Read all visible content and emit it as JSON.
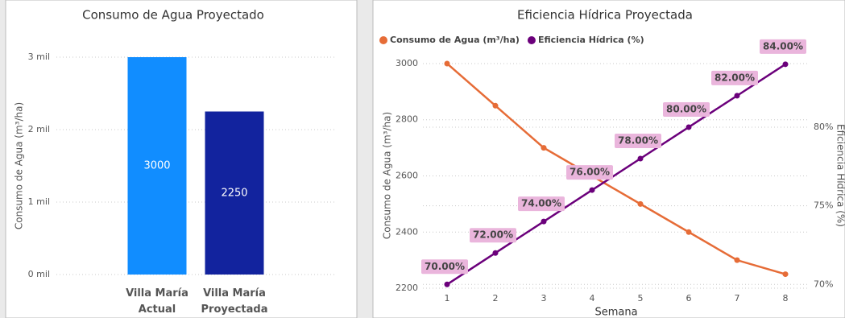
{
  "chart_data": [
    {
      "type": "bar",
      "title": "Consumo de Agua Proyectado",
      "ylabel": "Consumo de Agua (m³/ha)",
      "categories": [
        "Villa María Actual",
        "Villa María Proyectada"
      ],
      "values": [
        3000,
        2250
      ],
      "colors": [
        "#118dff",
        "#12239e"
      ],
      "ylim": [
        0,
        3000
      ],
      "yticks": [
        {
          "value": 0,
          "label": "0 mil"
        },
        {
          "value": 1000,
          "label": "1 mil"
        },
        {
          "value": 2000,
          "label": "2 mil"
        },
        {
          "value": 3000,
          "label": "3 mil"
        }
      ],
      "grid": true
    },
    {
      "type": "line",
      "title": "Eficiencia Hídrica Proyectada",
      "xlabel": "Semana",
      "ylabel": "Consumo de Agua (m³/ha)",
      "y2label": "Eficiencia Hídrica (%)",
      "x": [
        1,
        2,
        3,
        4,
        5,
        6,
        7,
        8
      ],
      "xlim": [
        0.5,
        8.5
      ],
      "xticks": [
        1,
        2,
        3,
        4,
        5,
        6,
        7,
        8
      ],
      "ylim": [
        2180,
        3020
      ],
      "yticks": [
        2200,
        2400,
        2600,
        2800,
        3000
      ],
      "y2lim": [
        69.4,
        84.4
      ],
      "y2ticks": [
        {
          "value": 70,
          "label": "70%"
        },
        {
          "value": 75,
          "label": "75%"
        },
        {
          "value": 80,
          "label": "80%"
        }
      ],
      "grid": true,
      "legend": "top-left",
      "series": [
        {
          "name": "Consumo de Agua (m³/ha)",
          "color": "#e66c37",
          "values": [
            3000,
            2850,
            2700,
            2600,
            2500,
            2400,
            2300,
            2250
          ]
        },
        {
          "name": "Eficiencia Hídrica (%)",
          "color": "#6b007b",
          "axis": "y2",
          "values": [
            70,
            72,
            74,
            76,
            78,
            80,
            82,
            84
          ],
          "value_labels": [
            "70.00%",
            "72.00%",
            "74.00%",
            "76.00%",
            "78.00%",
            "80.00%",
            "82.00%",
            "84.00%"
          ]
        }
      ]
    }
  ]
}
